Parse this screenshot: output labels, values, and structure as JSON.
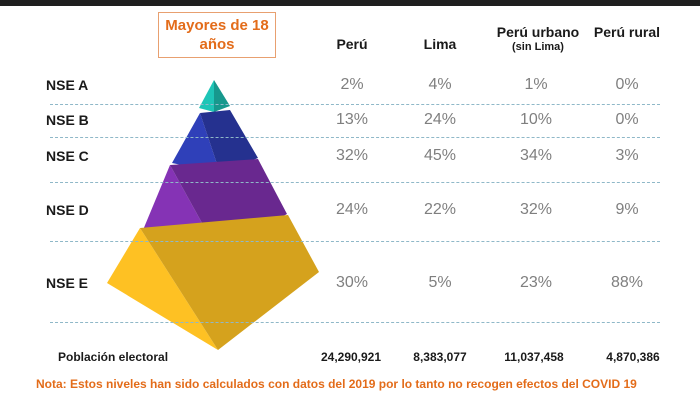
{
  "title": "Mayores de 18 años",
  "columns": [
    {
      "label": "Perú",
      "sub": ""
    },
    {
      "label": "Lima",
      "sub": ""
    },
    {
      "label": "Perú urbano",
      "sub": "(sin Lima)"
    },
    {
      "label": "Perú rural",
      "sub": ""
    }
  ],
  "chart_data": {
    "type": "table",
    "title": "Mayores de 18 años",
    "rows": [
      "NSE A",
      "NSE B",
      "NSE C",
      "NSE D",
      "NSE E"
    ],
    "series": [
      {
        "name": "Perú",
        "values": [
          "2%",
          "13%",
          "32%",
          "24%",
          "30%"
        ]
      },
      {
        "name": "Lima",
        "values": [
          "4%",
          "24%",
          "45%",
          "22%",
          "5%"
        ]
      },
      {
        "name": "Perú urbano (sin Lima)",
        "values": [
          "1%",
          "10%",
          "34%",
          "32%",
          "23%"
        ]
      },
      {
        "name": "Perú rural",
        "values": [
          "0%",
          "0%",
          "3%",
          "9%",
          "88%"
        ]
      }
    ],
    "population_label": "Población electoral",
    "population": [
      "24,290,921",
      "8,383,077",
      "11,037,458",
      "4,870,386"
    ]
  },
  "pyramid_colors": {
    "tier1": "#1bb3a6",
    "tier2": "#2b3aa8",
    "tier3": "#7b2fa8",
    "tier4": "#f2b821"
  },
  "note": "Nota: Estos niveles han sido calculados con datos del 2019 por lo tanto no recogen efectos del COVID 19"
}
